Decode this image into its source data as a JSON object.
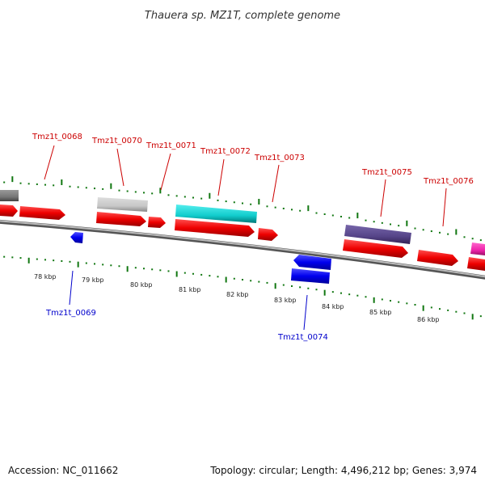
{
  "title": "Thauera sp. MZ1T, complete genome",
  "footer": {
    "accession": "Accession: NC_011662",
    "stats": "Topology: circular; Length: 4,496,212 bp; Genes: 3,974"
  },
  "colors": {
    "forward_label": "#cc0000",
    "reverse_label": "#0000cc",
    "cds_red": "#ee0000",
    "cds_blue": "#0000ee",
    "tick": "#117711",
    "backbone": "#888888",
    "gene_gray": "#777777",
    "gene_lightgray": "#c8c8c8",
    "gene_cyan": "#11cccc",
    "gene_indigo": "#554488",
    "gene_magenta": "#ee22aa"
  },
  "axis_labels": [
    "78 kbp",
    "79 kbp",
    "80 kbp",
    "81 kbp",
    "82 kbp",
    "83 kbp",
    "84 kbp",
    "85 kbp",
    "86 kbp"
  ],
  "forward_genes": [
    "Tmz1t_0068",
    "Tmz1t_0070",
    "Tmz1t_0071",
    "Tmz1t_0072",
    "Tmz1t_0073",
    "Tmz1t_0075",
    "Tmz1t_0076"
  ],
  "reverse_genes": [
    "Tmz1t_0069",
    "Tmz1t_0074"
  ]
}
